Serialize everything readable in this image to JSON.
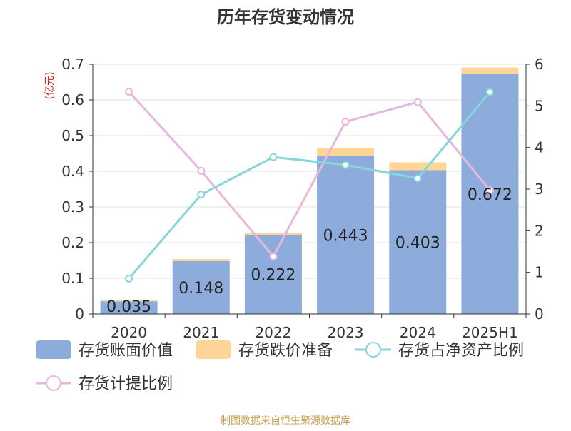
{
  "chart_data": {
    "type": "bar",
    "title": "历年存货变动情况",
    "ylabel_left": "(亿元)",
    "categories": [
      "2020",
      "2021",
      "2022",
      "2023",
      "2024",
      "2025H1"
    ],
    "ylim_left": [
      0,
      0.7
    ],
    "yticks_left": [
      "0",
      "0.1",
      "0.2",
      "0.3",
      "0.4",
      "0.5",
      "0.6",
      "0.7"
    ],
    "ylim_right": [
      0,
      6
    ],
    "yticks_right": [
      "0",
      "1",
      "2",
      "3",
      "4",
      "5",
      "6"
    ],
    "series": [
      {
        "name": "存货账面价值",
        "type": "bar",
        "stack": "s",
        "axis": "left",
        "color": "#8eacdb",
        "values": [
          0.035,
          0.148,
          0.222,
          0.443,
          0.403,
          0.672
        ]
      },
      {
        "name": "存货跌价准备",
        "type": "bar",
        "stack": "s",
        "axis": "left",
        "color": "#fdd597",
        "values": [
          0.003,
          0.006,
          0.005,
          0.022,
          0.022,
          0.019
        ]
      },
      {
        "name": "存货占净资产比例",
        "type": "line",
        "axis": "right",
        "color": "#86d5d8",
        "values": [
          0.85,
          2.87,
          3.77,
          3.58,
          3.26,
          5.33
        ]
      },
      {
        "name": "存货计提比例",
        "type": "line",
        "axis": "right",
        "color": "#e7b7dc",
        "values": [
          5.34,
          3.44,
          1.38,
          4.62,
          5.09,
          2.97
        ]
      }
    ],
    "data_labels": [
      "0.035",
      "0.148",
      "0.222",
      "0.443",
      "0.403",
      "0.672"
    ],
    "grid": true,
    "legend_position": "bottom"
  },
  "source": "制图数据来自恒生聚源数据库"
}
